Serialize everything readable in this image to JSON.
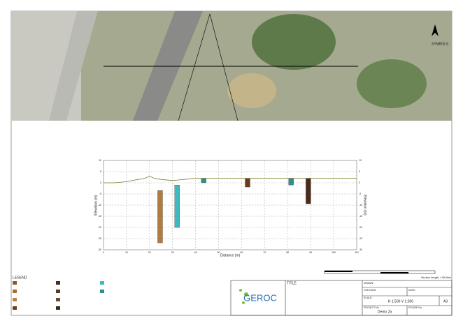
{
  "map": {
    "symbols_title": "SYMBOLS"
  },
  "section": {
    "y_label": "Elevation (m)",
    "x_label": "Distance (m)",
    "xlim": [
      0,
      110
    ],
    "xticks": [
      0,
      10,
      20,
      30,
      40,
      50,
      60,
      70,
      80,
      90,
      100,
      110
    ],
    "ylim": [
      -30,
      10
    ],
    "yticks": [
      10,
      5,
      0,
      -5,
      -10,
      -15,
      -20,
      -25,
      -30
    ],
    "ground": {
      "color": "#7a7a2a",
      "x": [
        0,
        5,
        10,
        15,
        18,
        20,
        22,
        25,
        30,
        35,
        40,
        45,
        50,
        60,
        70,
        80,
        90,
        100,
        110
      ],
      "y": [
        0,
        0,
        0.5,
        1.5,
        2,
        3,
        2,
        1.5,
        1,
        1.5,
        2,
        2,
        2,
        2,
        2,
        2,
        2,
        2,
        2
      ]
    },
    "boreholes": [
      {
        "x": 24.6,
        "top": -3.4,
        "bottom": -26.9,
        "color": "#b07a40"
      },
      {
        "x": 32,
        "top": -1,
        "bottom": -20,
        "color": "#3fb8c0"
      },
      {
        "x": 43.5,
        "top": 1.9,
        "bottom": 0,
        "color": "#2f8f8f"
      },
      {
        "x": 62.6,
        "top": 1.9,
        "bottom": -1.9,
        "color": "#6b3a20"
      },
      {
        "x": 81.5,
        "top": 1.9,
        "bottom": -1,
        "color": "#2f8f8f"
      },
      {
        "x": 89,
        "top": 1.9,
        "bottom": -9.4,
        "color": "#4a2a18"
      }
    ]
  },
  "scale_bar": {
    "note": "Section length: 145.66m"
  },
  "legend": {
    "title": "LEGEND"
  },
  "title_block": {
    "logo": "GEROC",
    "title_label": "TITLE:",
    "drawn": "DRAWN:",
    "checked": "CHECKED:",
    "date": "DATE:",
    "scale_label": "SCALE:",
    "scale": "H 1:500  V 1:500",
    "size": "A3",
    "project_label": "PROJECT No.",
    "project": "Demo 2a",
    "figure_label": "FIGURE No."
  }
}
